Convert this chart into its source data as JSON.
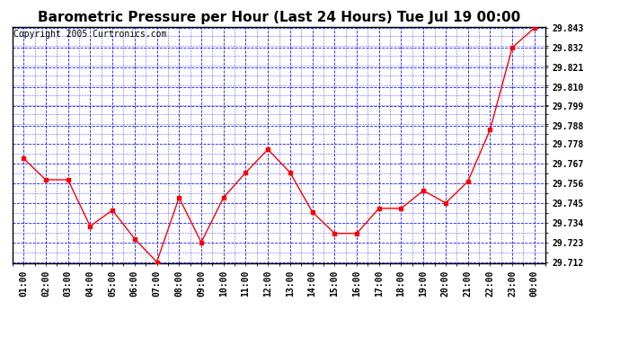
{
  "title": "Barometric Pressure per Hour (Last 24 Hours) Tue Jul 19 00:00",
  "copyright": "Copyright 2005 Curtronics.com",
  "x_labels": [
    "01:00",
    "02:00",
    "03:00",
    "04:00",
    "05:00",
    "06:00",
    "07:00",
    "08:00",
    "09:00",
    "10:00",
    "11:00",
    "12:00",
    "13:00",
    "14:00",
    "15:00",
    "16:00",
    "17:00",
    "18:00",
    "19:00",
    "20:00",
    "21:00",
    "22:00",
    "23:00",
    "00:00"
  ],
  "y_values": [
    29.77,
    29.758,
    29.758,
    29.732,
    29.741,
    29.725,
    29.712,
    29.748,
    29.723,
    29.748,
    29.762,
    29.775,
    29.762,
    29.74,
    29.728,
    29.728,
    29.742,
    29.742,
    29.752,
    29.745,
    29.757,
    29.786,
    29.832,
    29.843
  ],
  "ylim_min": 29.712,
  "ylim_max": 29.843,
  "yticks": [
    29.712,
    29.723,
    29.734,
    29.745,
    29.756,
    29.767,
    29.778,
    29.788,
    29.799,
    29.81,
    29.821,
    29.832,
    29.843
  ],
  "line_color": "red",
  "marker": "s",
  "marker_size": 2.5,
  "grid_color": "blue",
  "fig_bg_color": "#ffffff",
  "plot_bg_color": "#ffffff",
  "title_fontsize": 11,
  "tick_fontsize": 7,
  "copyright_fontsize": 7
}
